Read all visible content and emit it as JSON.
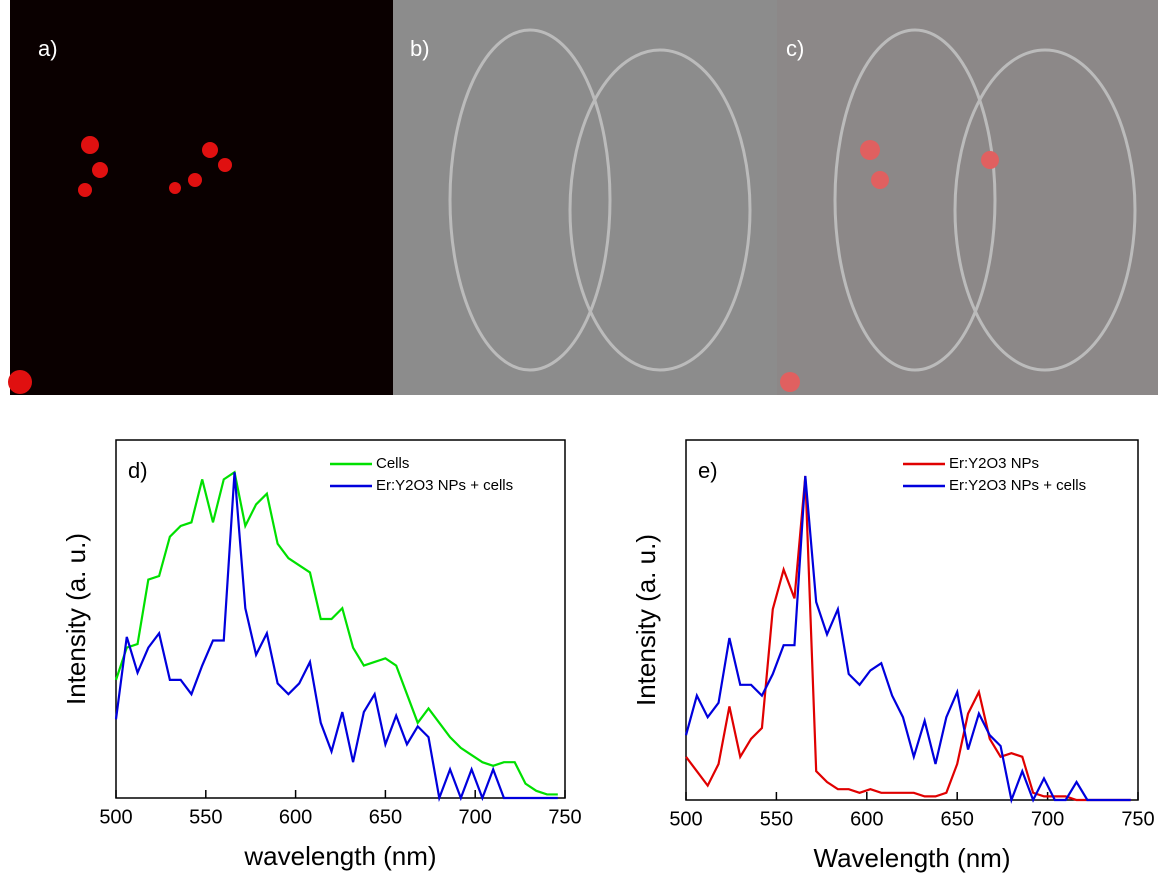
{
  "panels": [
    "a)",
    "b)",
    "c)"
  ],
  "chart_data": [
    {
      "type": "line",
      "label": "d)",
      "xlabel": "wavelength (nm)",
      "ylabel": "Intensity (a. u.)",
      "x": [
        500,
        506,
        512,
        518,
        524,
        530,
        536,
        542,
        548,
        554,
        560,
        566,
        572,
        578,
        584,
        590,
        596,
        602,
        608,
        614,
        620,
        626,
        632,
        638,
        644,
        650,
        656,
        662,
        668,
        674,
        680,
        686,
        692,
        698,
        704,
        710,
        716,
        722,
        728,
        734,
        740,
        746
      ],
      "xlim": [
        500,
        750
      ],
      "xticks": [
        500,
        550,
        600,
        650,
        700,
        750
      ],
      "ylim": [
        0,
        1
      ],
      "legend": "upper right",
      "series": [
        {
          "name": "Cells",
          "color": "#00e000",
          "values": [
            0.33,
            0.42,
            0.43,
            0.61,
            0.62,
            0.73,
            0.76,
            0.77,
            0.89,
            0.77,
            0.89,
            0.91,
            0.76,
            0.82,
            0.85,
            0.71,
            0.67,
            0.65,
            0.63,
            0.5,
            0.5,
            0.53,
            0.42,
            0.37,
            0.38,
            0.39,
            0.37,
            0.29,
            0.21,
            0.25,
            0.21,
            0.17,
            0.14,
            0.12,
            0.1,
            0.09,
            0.1,
            0.1,
            0.04,
            0.02,
            0.01,
            0.01
          ]
        },
        {
          "name": "Er:Y2O3 NPs + cells",
          "color": "#0000dd",
          "values": [
            0.22,
            0.45,
            0.35,
            0.42,
            0.46,
            0.33,
            0.33,
            0.29,
            0.37,
            0.44,
            0.44,
            0.91,
            0.53,
            0.4,
            0.46,
            0.32,
            0.29,
            0.32,
            0.38,
            0.21,
            0.13,
            0.24,
            0.1,
            0.24,
            0.29,
            0.15,
            0.23,
            0.15,
            0.2,
            0.17,
            0,
            0.08,
            0,
            0.08,
            0,
            0.08,
            0,
            0,
            0,
            0,
            0,
            0
          ]
        }
      ]
    },
    {
      "type": "line",
      "label": "e)",
      "xlabel": "Wavelength (nm)",
      "ylabel": "Intensity (a. u.)",
      "x": [
        500,
        506,
        512,
        518,
        524,
        530,
        536,
        542,
        548,
        554,
        560,
        566,
        572,
        578,
        584,
        590,
        596,
        602,
        608,
        614,
        620,
        626,
        632,
        638,
        644,
        650,
        656,
        662,
        668,
        674,
        680,
        686,
        692,
        698,
        704,
        710,
        716,
        722,
        728,
        734,
        740,
        746
      ],
      "xlim": [
        500,
        750
      ],
      "xticks": [
        500,
        550,
        600,
        650,
        700,
        750
      ],
      "ylim": [
        0,
        1
      ],
      "legend": "upper right",
      "series": [
        {
          "name": "Er:Y2O3 NPs",
          "color": "#e00000",
          "values": [
            0.12,
            0.08,
            0.04,
            0.1,
            0.26,
            0.12,
            0.17,
            0.2,
            0.53,
            0.64,
            0.56,
            0.9,
            0.08,
            0.05,
            0.03,
            0.03,
            0.02,
            0.03,
            0.02,
            0.02,
            0.02,
            0.02,
            0.01,
            0.01,
            0.02,
            0.1,
            0.24,
            0.3,
            0.17,
            0.12,
            0.13,
            0.12,
            0.02,
            0.01,
            0.01,
            0.01,
            0,
            0,
            0,
            0,
            0,
            0
          ]
        },
        {
          "name": "Er:Y2O3 NPs + cells",
          "color": "#0000dd",
          "values": [
            0.18,
            0.29,
            0.23,
            0.27,
            0.45,
            0.32,
            0.32,
            0.29,
            0.35,
            0.43,
            0.43,
            0.9,
            0.55,
            0.46,
            0.53,
            0.35,
            0.32,
            0.36,
            0.38,
            0.29,
            0.23,
            0.12,
            0.22,
            0.1,
            0.23,
            0.3,
            0.14,
            0.24,
            0.18,
            0.15,
            0,
            0.08,
            0,
            0.06,
            0,
            0,
            0.05,
            0,
            0,
            0,
            0,
            0
          ]
        }
      ]
    }
  ]
}
